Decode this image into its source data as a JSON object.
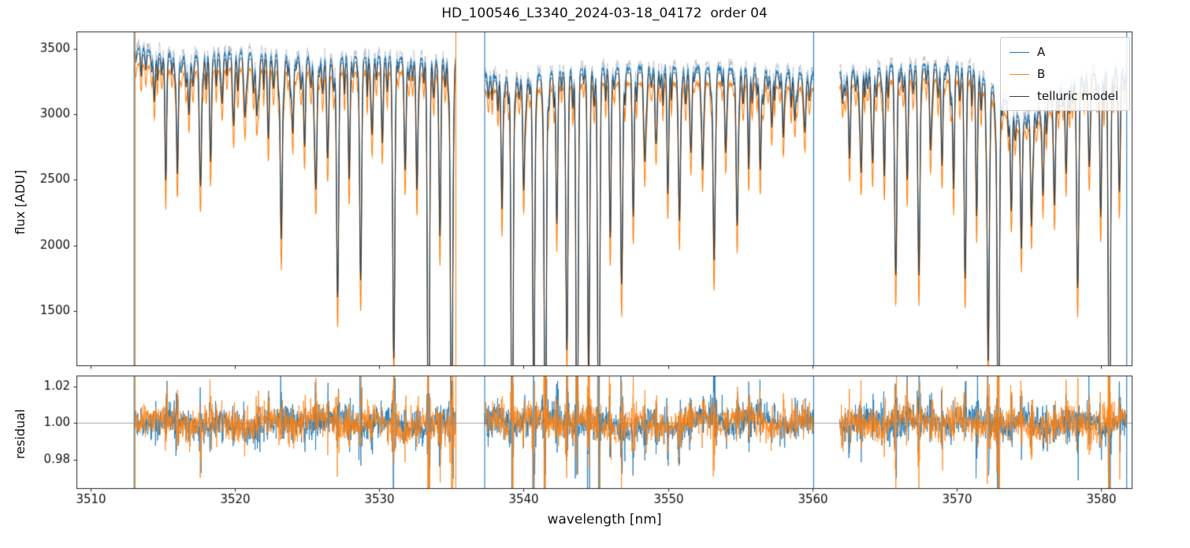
{
  "chart_data": {
    "type": "line",
    "title": "HD_100546_L3340_2024-03-18_04172  order 04",
    "xlabel": "wavelength [nm]",
    "xlim": [
      3509.0,
      3582.2
    ],
    "xticks": [
      3510,
      3520,
      3530,
      3540,
      3550,
      3560,
      3570,
      3580
    ],
    "segments": [
      [
        3513.0,
        3535.3
      ],
      [
        3537.3,
        3560.1
      ],
      [
        3561.9,
        3581.8
      ]
    ],
    "panels": [
      {
        "name": "flux",
        "ylabel": "flux [ADU]",
        "ylim": [
          1080,
          3630
        ],
        "yticks": [
          1500,
          2000,
          2500,
          3000,
          3500
        ]
      },
      {
        "name": "residual",
        "ylabel": "residual",
        "ylim": [
          0.964,
          1.026
        ],
        "yticks": [
          0.98,
          1.0,
          1.02
        ],
        "refline": 1.0
      }
    ],
    "series": [
      {
        "name": "A",
        "color": "#1f77b4",
        "linewidth": 1.8
      },
      {
        "name": "B",
        "color": "#ff7f0e",
        "linewidth": 1.8
      },
      {
        "name": "telluric model",
        "color": "#3d3d3d",
        "linewidth": 1.2
      }
    ],
    "raw_trace_color": "rgba(150,162,178,0.45)",
    "refline_color": "#8a8a8a",
    "continuum": [
      [
        3513.0,
        3510
      ],
      [
        3516.0,
        3430
      ],
      [
        3520.0,
        3465
      ],
      [
        3523.0,
        3450
      ],
      [
        3526.0,
        3420
      ],
      [
        3529.0,
        3435
      ],
      [
        3532.0,
        3430
      ],
      [
        3535.3,
        3415
      ],
      [
        3537.3,
        3290
      ],
      [
        3540.0,
        3280
      ],
      [
        3544.0,
        3340
      ],
      [
        3548.0,
        3350
      ],
      [
        3552.0,
        3350
      ],
      [
        3556.0,
        3340
      ],
      [
        3560.1,
        3300
      ],
      [
        3561.9,
        3320
      ],
      [
        3565.0,
        3360
      ],
      [
        3568.0,
        3385
      ],
      [
        3571.0,
        3360
      ],
      [
        3573.0,
        3150
      ],
      [
        3574.5,
        2950
      ],
      [
        3576.0,
        3080
      ],
      [
        3578.0,
        3250
      ],
      [
        3580.0,
        3320
      ],
      [
        3581.8,
        3340
      ]
    ],
    "b_scale": 0.965,
    "b_depth_exponent": 1.18,
    "model_scale": 0.99,
    "lines": [
      [
        3514.4,
        0.1,
        0.06
      ],
      [
        3515.2,
        0.2,
        0.06
      ],
      [
        3516.0,
        0.25,
        0.06
      ],
      [
        3516.8,
        0.12,
        0.06
      ],
      [
        3517.6,
        0.28,
        0.07
      ],
      [
        3518.3,
        0.18,
        0.06
      ],
      [
        3519.1,
        0.1,
        0.06
      ],
      [
        3519.9,
        0.15,
        0.06
      ],
      [
        3520.7,
        0.1,
        0.06
      ],
      [
        3521.5,
        0.12,
        0.06
      ],
      [
        3522.3,
        0.14,
        0.06
      ],
      [
        3523.2,
        0.4,
        0.07
      ],
      [
        3524.0,
        0.16,
        0.06
      ],
      [
        3524.8,
        0.12,
        0.06
      ],
      [
        3525.6,
        0.28,
        0.07
      ],
      [
        3526.4,
        0.18,
        0.06
      ],
      [
        3527.1,
        0.51,
        0.07
      ],
      [
        3527.9,
        0.22,
        0.06
      ],
      [
        3528.7,
        0.47,
        0.07
      ],
      [
        3529.5,
        0.16,
        0.06
      ],
      [
        3530.2,
        0.12,
        0.06
      ],
      [
        3531.0,
        0.66,
        0.07
      ],
      [
        3531.8,
        0.2,
        0.06
      ],
      [
        3532.6,
        0.28,
        0.06
      ],
      [
        3533.4,
        0.97,
        0.07
      ],
      [
        3534.2,
        0.38,
        0.06
      ],
      [
        3535.0,
        0.97,
        0.07
      ],
      [
        3538.5,
        0.3,
        0.06
      ],
      [
        3539.2,
        0.97,
        0.07
      ],
      [
        3540.0,
        0.25,
        0.06
      ],
      [
        3540.7,
        0.72,
        0.07
      ],
      [
        3541.5,
        0.97,
        0.07
      ],
      [
        3542.3,
        0.3,
        0.06
      ],
      [
        3543.0,
        0.6,
        0.07
      ],
      [
        3543.7,
        0.97,
        0.07
      ],
      [
        3544.5,
        0.65,
        0.07
      ],
      [
        3545.2,
        0.97,
        0.07
      ],
      [
        3546.0,
        0.35,
        0.06
      ],
      [
        3546.8,
        0.45,
        0.07
      ],
      [
        3547.6,
        0.33,
        0.06
      ],
      [
        3548.4,
        0.2,
        0.06
      ],
      [
        3549.2,
        0.15,
        0.06
      ],
      [
        3550.0,
        0.25,
        0.06
      ],
      [
        3550.8,
        0.34,
        0.07
      ],
      [
        3551.6,
        0.18,
        0.06
      ],
      [
        3552.4,
        0.22,
        0.06
      ],
      [
        3553.2,
        0.43,
        0.07
      ],
      [
        3554.0,
        0.18,
        0.06
      ],
      [
        3554.8,
        0.35,
        0.07
      ],
      [
        3555.6,
        0.15,
        0.06
      ],
      [
        3556.4,
        0.22,
        0.06
      ],
      [
        3557.2,
        0.12,
        0.06
      ],
      [
        3558.0,
        0.14,
        0.06
      ],
      [
        3558.8,
        0.1,
        0.06
      ],
      [
        3559.5,
        0.12,
        0.06
      ],
      [
        3562.6,
        0.15,
        0.06
      ],
      [
        3563.4,
        0.22,
        0.06
      ],
      [
        3564.2,
        0.2,
        0.06
      ],
      [
        3565.0,
        0.24,
        0.06
      ],
      [
        3565.8,
        0.45,
        0.07
      ],
      [
        3566.6,
        0.2,
        0.06
      ],
      [
        3567.4,
        0.47,
        0.07
      ],
      [
        3568.2,
        0.18,
        0.06
      ],
      [
        3569.0,
        0.22,
        0.06
      ],
      [
        3569.8,
        0.25,
        0.06
      ],
      [
        3570.6,
        0.44,
        0.07
      ],
      [
        3571.4,
        0.3,
        0.06
      ],
      [
        3572.2,
        0.65,
        0.07
      ],
      [
        3572.9,
        0.97,
        0.07
      ],
      [
        3573.8,
        0.25,
        0.06
      ],
      [
        3574.5,
        0.3,
        0.06
      ],
      [
        3575.2,
        0.28,
        0.06
      ],
      [
        3576.0,
        0.22,
        0.06
      ],
      [
        3576.8,
        0.25,
        0.06
      ],
      [
        3577.6,
        0.2,
        0.06
      ],
      [
        3578.4,
        0.48,
        0.07
      ],
      [
        3579.2,
        0.2,
        0.06
      ],
      [
        3580.0,
        0.3,
        0.06
      ],
      [
        3580.6,
        0.97,
        0.07
      ],
      [
        3581.3,
        0.25,
        0.06
      ]
    ],
    "noise": {
      "flux_sigma": 9,
      "raw_sigma": 20,
      "residual_sigma": 0.0035
    },
    "edge_lines": [
      {
        "x": 3513.0,
        "series": "A"
      },
      {
        "x": 3513.07,
        "series": "B"
      },
      {
        "x": 3535.3,
        "series": "B"
      },
      {
        "x": 3537.3,
        "series": "A"
      },
      {
        "x": 3560.1,
        "series": "A"
      },
      {
        "x": 3581.8,
        "series": "A"
      }
    ]
  }
}
